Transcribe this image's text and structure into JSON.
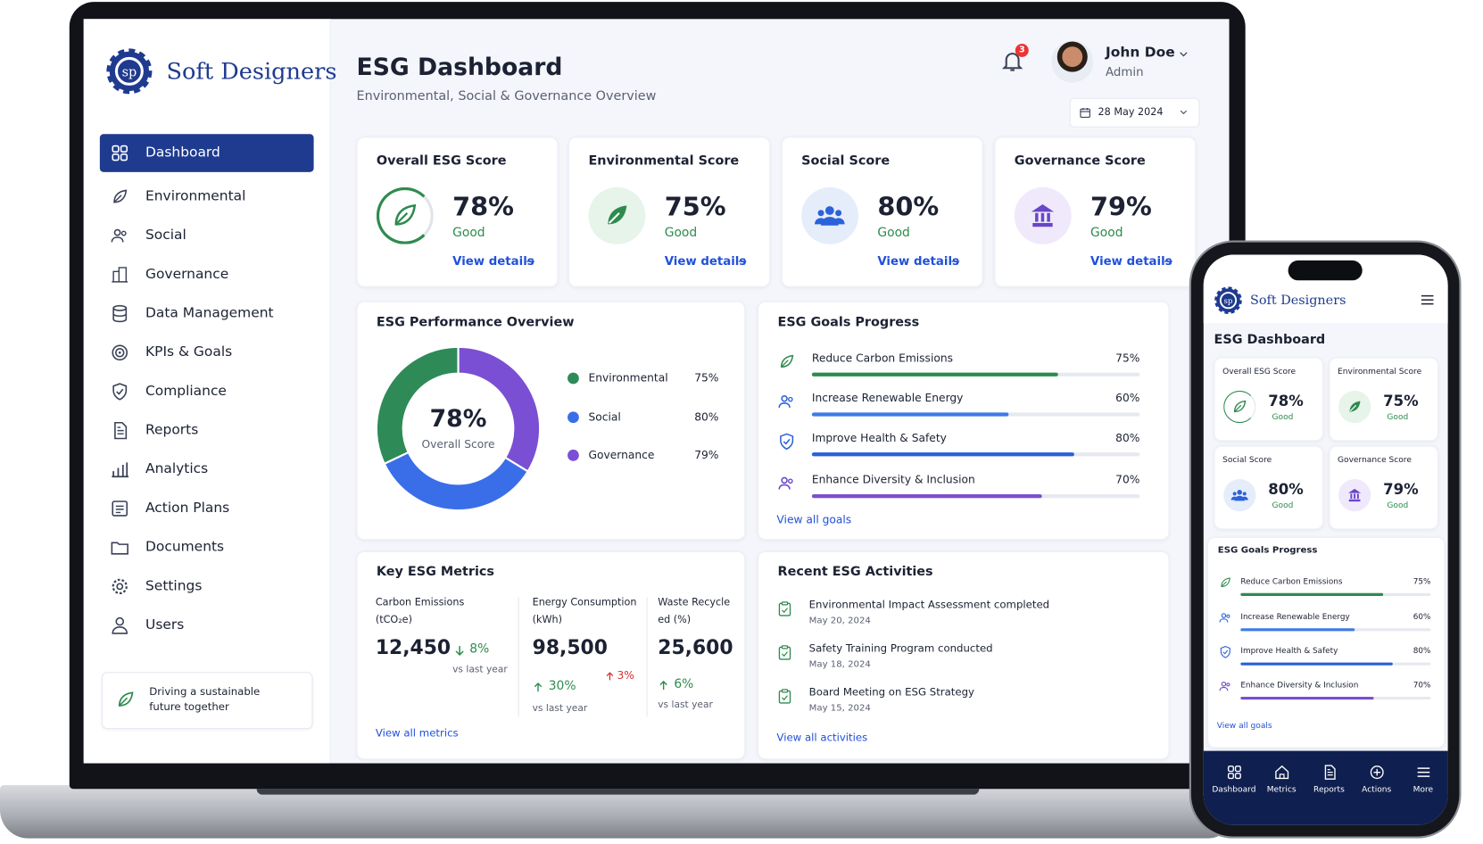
{
  "brand": "Soft Designers",
  "nav": [
    "Dashboard",
    "Environmental",
    "Social",
    "Governance",
    "Data Management",
    "KPIs & Goals",
    "Compliance",
    "Reports",
    "Analytics",
    "Action Plans",
    "Documents",
    "Settings",
    "Users"
  ],
  "promo": "Driving a sustainable future together",
  "header": {
    "title": "ESG Dashboard",
    "subtitle": "Environmental, Social & Governance Overview",
    "notifications": 3,
    "user_name": "John Doe",
    "user_role": "Admin",
    "date": "28 May 2024"
  },
  "score_cards": [
    {
      "title": "Overall ESG Score",
      "value": "78%",
      "status": "Good",
      "link": "View details"
    },
    {
      "title": "Environmental Score",
      "value": "75%",
      "status": "Good",
      "link": "View details"
    },
    {
      "title": "Social Score",
      "value": "80%",
      "status": "Good",
      "link": "View details"
    },
    {
      "title": "Governance Score",
      "value": "79%",
      "status": "Good",
      "link": "View details"
    }
  ],
  "performance": {
    "title": "ESG Performance Overview",
    "center_value": "78%",
    "center_label": "Overall Score",
    "names": [
      "Environmental",
      "Social",
      "Governance"
    ],
    "values": [
      75,
      80,
      79
    ],
    "value_labels": [
      "75%",
      "80%",
      "79%"
    ],
    "colors": [
      "#2e8b57",
      "#3a6ee8",
      "#7b4fd3"
    ]
  },
  "goals": {
    "title": "ESG Goals Progress",
    "xlim": [
      0,
      100
    ],
    "names": [
      "Reduce Carbon Emissions",
      "Increase Renewable Energy",
      "Improve Health & Safety",
      "Enhance Diversity & Inclusion"
    ],
    "values": [
      75,
      60,
      80,
      70
    ],
    "value_labels": [
      "75%",
      "60%",
      "80%",
      "70%"
    ],
    "colors": [
      "#2e8b4e",
      "#3d7be8",
      "#2b5fd9",
      "#7a4fd0"
    ],
    "link": "View all goals"
  },
  "metrics": {
    "title": "Key ESG Metrics",
    "link": "View all metrics",
    "items": [
      {
        "label": "Carbon Emissions",
        "unit": "(tCO₂e)",
        "value": "12,450",
        "change": "8%",
        "compare": "vs last year"
      },
      {
        "label": "Energy Consumption",
        "unit": "(kWh)",
        "value": "98,500",
        "change": "30%",
        "alt_change": "3%",
        "compare": "vs last year"
      },
      {
        "label": "Waste Recycle",
        "unit": "ed (%)",
        "value": "25,600",
        "change": "6%",
        "compare": "vs last year"
      }
    ]
  },
  "activities": {
    "title": "Recent ESG Activities",
    "link": "View all activities",
    "items": [
      {
        "text": "Environmental Impact Assessment completed",
        "date": "May 20, 2024"
      },
      {
        "text": "Safety Training Program conducted",
        "date": "May 18, 2024"
      },
      {
        "text": "Board Meeting on ESG Strategy",
        "date": "May 15, 2024"
      }
    ]
  },
  "mobile_nav": [
    "Dashboard",
    "Metrics",
    "Reports",
    "Actions",
    "More"
  ]
}
